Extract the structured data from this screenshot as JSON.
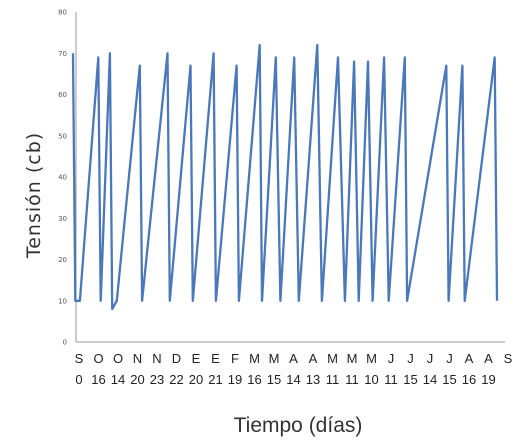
{
  "chart_data": {
    "type": "line",
    "title": "",
    "xlabel": "Tiempo (días)",
    "ylabel": "Tensión (cb)",
    "ylim": [
      0,
      80
    ],
    "yticks": [
      0,
      10,
      20,
      30,
      40,
      50,
      60,
      70,
      80
    ],
    "grid": false,
    "legend": "none",
    "color": "#4a78b8",
    "x_tick_labels": [
      {
        "month": "S",
        "day": "0"
      },
      {
        "month": "O",
        "day": "16"
      },
      {
        "month": "O",
        "day": "14"
      },
      {
        "month": "N",
        "day": "20"
      },
      {
        "month": "N",
        "day": "23"
      },
      {
        "month": "D",
        "day": "22"
      },
      {
        "month": "E",
        "day": "20"
      },
      {
        "month": "E",
        "day": "21"
      },
      {
        "month": "F",
        "day": "19"
      },
      {
        "month": "M",
        "day": "16"
      },
      {
        "month": "M",
        "day": "15"
      },
      {
        "month": "A",
        "day": "14"
      },
      {
        "month": "A",
        "day": "13"
      },
      {
        "month": "M",
        "day": "11"
      },
      {
        "month": "M",
        "day": "11"
      },
      {
        "month": "M",
        "day": "10"
      },
      {
        "month": "J",
        "day": "11"
      },
      {
        "month": "J",
        "day": "15"
      },
      {
        "month": "J",
        "day": "14"
      },
      {
        "month": "J",
        "day": "15"
      },
      {
        "month": "A",
        "day": "16"
      },
      {
        "month": "A",
        "day": "19"
      },
      {
        "month": "S",
        "day": ""
      }
    ],
    "series": [
      {
        "x": [
          0,
          0.1,
          0.3,
          1.1,
          1.2,
          1.6,
          1.7,
          1.9,
          2.9,
          3.0,
          4.1,
          4.2,
          5.1,
          5.2,
          6.1,
          6.2,
          7.1,
          7.2,
          8.1,
          8.2,
          8.8,
          9.0,
          9.6,
          9.8,
          10.6,
          10.8,
          11.5,
          11.8,
          12.2,
          12.4,
          12.8,
          13.0,
          13.5,
          13.7,
          14.4,
          14.5,
          16.2,
          16.3,
          16.9,
          17.0,
          18.3,
          18.4
        ],
        "y": [
          70,
          10,
          10,
          69,
          10,
          70,
          8,
          10,
          67,
          10,
          70,
          10,
          67,
          10,
          70,
          10,
          67,
          10,
          72,
          10,
          69,
          10,
          69,
          10,
          72,
          10,
          69,
          10,
          68,
          10,
          68,
          10,
          69,
          10,
          69,
          10,
          67,
          10,
          67,
          10,
          69,
          10
        ]
      }
    ]
  }
}
